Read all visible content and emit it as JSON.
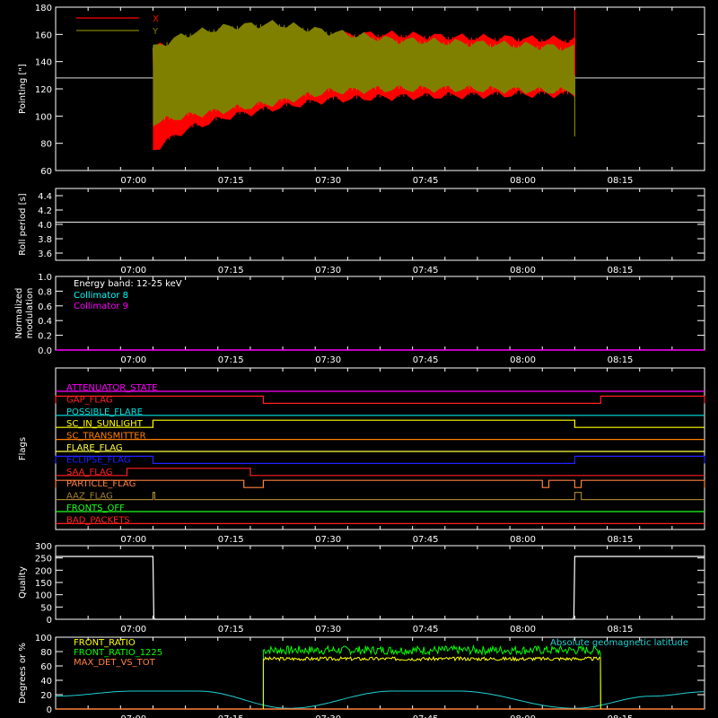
{
  "chart_data": [
    {
      "type": "area",
      "panel": "pointing",
      "ylabel": "Pointing [\"]",
      "ylim": [
        60,
        180
      ],
      "yticks": [
        60,
        80,
        100,
        120,
        140,
        160,
        180
      ],
      "xlim": [
        "06:48",
        "08:28"
      ],
      "xticks": [
        "07:00",
        "07:15",
        "07:30",
        "07:45",
        "08:00",
        "08:15"
      ],
      "reference_level": 128,
      "envelope_times": [
        "07:03",
        "07:08",
        "07:15",
        "07:22",
        "07:30",
        "07:40",
        "07:50",
        "08:00",
        "08:08"
      ],
      "series": [
        {
          "name": "X",
          "color": "#ff0000",
          "upper": [
            150,
            156,
            160,
            162,
            160,
            160,
            158,
            157,
            156
          ],
          "lower": [
            75,
            90,
            100,
            106,
            112,
            114,
            115,
            116,
            116
          ]
        },
        {
          "name": "Y",
          "color": "#808000",
          "upper": [
            150,
            160,
            166,
            168,
            162,
            156,
            154,
            152,
            150
          ],
          "lower": [
            95,
            100,
            105,
            110,
            118,
            120,
            120,
            119,
            118
          ]
        }
      ]
    },
    {
      "type": "line",
      "panel": "roll",
      "ylabel": "Roll period [s]",
      "ylim": [
        3.5,
        4.5
      ],
      "yticks": [
        3.6,
        3.8,
        4.0,
        4.2,
        4.4
      ],
      "xticks": [
        "07:00",
        "07:15",
        "07:30",
        "07:45",
        "08:00",
        "08:15"
      ],
      "value": 4.03
    },
    {
      "type": "line",
      "panel": "modulation",
      "ylabel": "Normalized modulation",
      "ylim": [
        0,
        1
      ],
      "yticks": [
        0.0,
        0.2,
        0.4,
        0.6,
        0.8,
        1.0
      ],
      "xticks": [
        "07:00",
        "07:15",
        "07:30",
        "07:45",
        "08:00",
        "08:15"
      ],
      "annotation": "Energy band: 12-25 keV",
      "series": [
        {
          "name": "Collimator 8",
          "color": "#00ffff"
        },
        {
          "name": "Collimator 9",
          "color": "#ff00ff"
        }
      ],
      "value": 0
    },
    {
      "type": "line",
      "panel": "flags",
      "ylabel": "Flags",
      "xticks": [
        "07:00",
        "07:15",
        "07:30",
        "07:45",
        "08:00",
        "08:15"
      ],
      "series": [
        {
          "name": "ATTENUATOR_STATE",
          "color": "#ff00ff",
          "on": []
        },
        {
          "name": "GAP_FLAG",
          "color": "#ff2020",
          "on": [
            [
              "06:48",
              "07:20"
            ],
            [
              "08:12",
              "08:28"
            ]
          ]
        },
        {
          "name": "POSSIBLE_FLARE",
          "color": "#00e0e0",
          "on": []
        },
        {
          "name": "SC_IN_SUNLIGHT",
          "color": "#ffff00",
          "on": [
            [
              "07:03",
              "08:08"
            ]
          ]
        },
        {
          "name": "SC_TRANSMITTER",
          "color": "#ff8000",
          "on": []
        },
        {
          "name": "FLARE_FLAG",
          "color": "#ffff40",
          "on": []
        },
        {
          "name": "ECLIPSE_FLAG",
          "color": "#2020ff",
          "on": [
            [
              "06:48",
              "07:03"
            ],
            [
              "08:08",
              "08:28"
            ]
          ]
        },
        {
          "name": "SAA_FLAG",
          "color": "#ff2020",
          "on": [
            [
              "06:59",
              "07:18"
            ]
          ]
        },
        {
          "name": "PARTICLE_FLAG",
          "color": "#ff8040",
          "on": [
            [
              "06:48",
              "07:17"
            ],
            [
              "07:20",
              "08:03"
            ],
            [
              "08:04",
              "08:08"
            ],
            [
              "08:09",
              "08:28"
            ]
          ]
        },
        {
          "name": "AAZ_FLAG",
          "color": "#a08030",
          "on": [
            [
              "07:03",
              "07:03"
            ],
            [
              "08:08",
              "08:09"
            ]
          ]
        },
        {
          "name": "FRONTS_OFF",
          "color": "#20ff20",
          "on": []
        },
        {
          "name": "BAD_PACKETS",
          "color": "#ff2020",
          "on": []
        }
      ]
    },
    {
      "type": "line",
      "panel": "quality",
      "ylabel": "Quality",
      "ylim": [
        0,
        300
      ],
      "yticks": [
        0,
        50,
        100,
        150,
        200,
        250,
        300
      ],
      "xticks": [
        "07:00",
        "07:15",
        "07:30",
        "07:45",
        "08:00",
        "08:15"
      ],
      "x": [
        "06:48",
        "07:03",
        "07:03",
        "07:03",
        "08:08",
        "08:08",
        "08:08",
        "08:28"
      ],
      "values": [
        256,
        256,
        10,
        0,
        0,
        10,
        256,
        256
      ]
    },
    {
      "type": "line",
      "panel": "ratios",
      "ylabel": "Degrees or %",
      "ylim": [
        0,
        100
      ],
      "yticks": [
        0,
        20,
        40,
        60,
        80,
        100
      ],
      "xticks": [
        "07:00",
        "07:15",
        "07:30",
        "07:45",
        "08:00",
        "08:15"
      ],
      "series": [
        {
          "name": "FRONT_RATIO",
          "color": "#ffff00",
          "x": [
            "07:20",
            "08:12"
          ],
          "level": 70
        },
        {
          "name": "FRONT_RATIO_1225",
          "color": "#00ff00",
          "x": [
            "07:20",
            "08:12"
          ],
          "level": 82
        },
        {
          "name": "MAX_DET_VS_TOT",
          "color": "#ff8040",
          "x": [
            "06:48",
            "08:28"
          ],
          "level": 0
        },
        {
          "name": "Absolute geomagnetic latitude",
          "color": "#20d0d0",
          "x": [
            "06:48",
            "07:00",
            "07:10",
            "07:24",
            "07:40",
            "07:50",
            "08:08",
            "08:20",
            "08:28"
          ],
          "values": [
            18,
            25,
            25,
            1,
            25,
            25,
            1,
            18,
            24
          ]
        }
      ]
    }
  ]
}
